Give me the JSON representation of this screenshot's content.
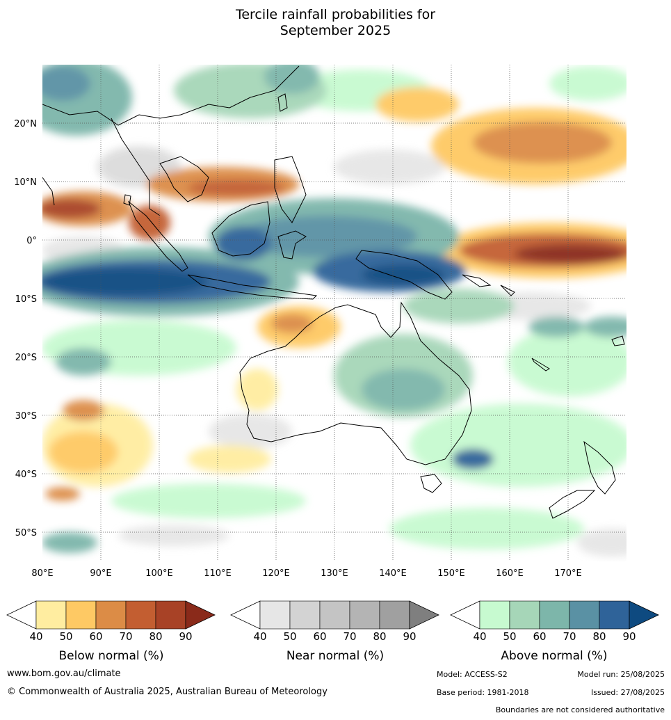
{
  "title": {
    "line1": "Tercile rainfall probabilities for",
    "line2": "September 2025"
  },
  "map": {
    "lon_range": [
      80,
      180
    ],
    "lat_range": [
      -55,
      30
    ],
    "lat_labels": [
      "20°N",
      "10°N",
      "0°",
      "10°S",
      "20°S",
      "30°S",
      "40°S",
      "50°S"
    ],
    "lat_values": [
      20,
      10,
      0,
      -10,
      -20,
      -30,
      -40,
      -50
    ],
    "lon_labels": [
      "80°E",
      "90°E",
      "100°E",
      "110°E",
      "120°E",
      "130°E",
      "140°E",
      "150°E",
      "160°E",
      "170°E"
    ],
    "lon_values": [
      80,
      90,
      100,
      110,
      120,
      130,
      140,
      150,
      160,
      170
    ]
  },
  "legends": [
    {
      "id": "below",
      "title": "Below normal (%)",
      "ticks": [
        "40",
        "50",
        "60",
        "70",
        "80",
        "90"
      ],
      "colors": [
        "#ffeda0",
        "#fec964",
        "#dc8c46",
        "#c35e31",
        "#a84226",
        "#8a2a1a"
      ]
    },
    {
      "id": "near",
      "title": "Near normal (%)",
      "ticks": [
        "40",
        "50",
        "60",
        "70",
        "80",
        "90"
      ],
      "colors": [
        "#e6e6e6",
        "#d3d3d3",
        "#c4c4c4",
        "#b4b4b4",
        "#a0a0a0",
        "#7f7f7f"
      ]
    },
    {
      "id": "above",
      "title": "Above normal (%)",
      "ticks": [
        "40",
        "50",
        "60",
        "70",
        "80",
        "90"
      ],
      "colors": [
        "#c7fad0",
        "#a6d6b8",
        "#7db6aa",
        "#5a91a4",
        "#2f6399",
        "#0e4a80"
      ]
    }
  ],
  "footer": {
    "website": "www.bom.gov.au/climate",
    "copyright": "© Commonwealth of Australia 2025, Australian Bureau of Meteorology",
    "model": "Model: ACCESS-S2",
    "model_run": "Model run: 25/08/2025",
    "base_period": "Base period: 1981-2018",
    "issued": "Issued: 27/08/2025",
    "disclaimer": "Boundaries are not considered authoritative"
  }
}
